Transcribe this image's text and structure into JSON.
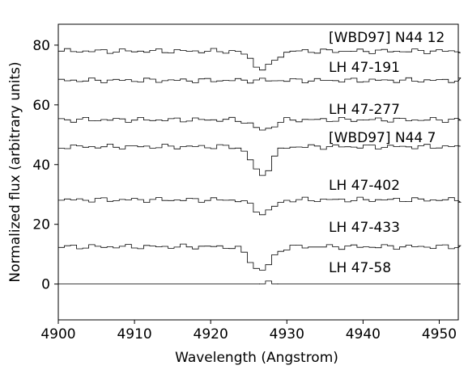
{
  "chart_data": {
    "type": "line",
    "xlabel": "Wavelength (Angstrom)",
    "ylabel": "Normalized flux (arbitrary units)",
    "xlim": [
      4900,
      4952.5
    ],
    "ylim": [
      -12,
      87
    ],
    "xticks": [
      4900,
      4910,
      4920,
      4930,
      4940,
      4950
    ],
    "yticks": [
      0,
      20,
      40,
      60,
      80
    ],
    "grid": false,
    "legend": "none",
    "line_color": "#000000",
    "line_style": "steps",
    "step_width": 0.8,
    "series": [
      {
        "name": "[WBD97] N44 12",
        "label_at": [
          4935.5,
          81
        ],
        "baseline": 78,
        "dips": [
          {
            "x": 4926.5,
            "depth": 6,
            "width": 1.9
          }
        ]
      },
      {
        "name": "LH 47-191",
        "label_at": [
          4935.5,
          71
        ],
        "baseline": 68.2,
        "dips": []
      },
      {
        "name": "LH 47-277",
        "label_at": [
          4935.5,
          57
        ],
        "baseline": 55,
        "dips": [
          {
            "x": 4926.5,
            "depth": 3.5,
            "width": 1.8
          }
        ]
      },
      {
        "name": "[WBD97] N44 7",
        "label_at": [
          4935.5,
          47.5
        ],
        "baseline": 46,
        "dips": [
          {
            "x": 4926.3,
            "depth": 9.5,
            "width": 1.7
          }
        ]
      },
      {
        "name": "LH 47-402",
        "label_at": [
          4935.5,
          31.5
        ],
        "baseline": 28.2,
        "dips": [
          {
            "x": 4926.5,
            "depth": 4.5,
            "width": 1.8
          }
        ]
      },
      {
        "name": "LH 47-433",
        "label_at": [
          4935.5,
          17.5
        ],
        "baseline": 12.5,
        "dips": [
          {
            "x": 4926.2,
            "depth": 8,
            "width": 1.9
          }
        ]
      },
      {
        "name": "LH 47-58",
        "label_at": [
          4935.5,
          4
        ],
        "baseline": 0,
        "dips": [
          {
            "x": 4927.2,
            "depth": -1,
            "width": 0.5
          }
        ]
      }
    ]
  }
}
